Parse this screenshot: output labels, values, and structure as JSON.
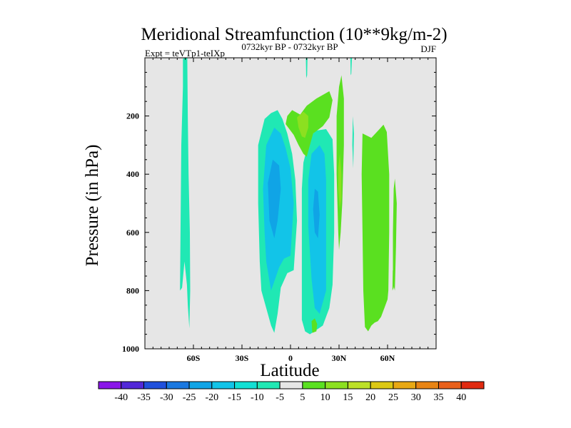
{
  "chart_data": {
    "type": "heatmap",
    "title": "Meridional Streamfunction (10**9kg/m-2)",
    "subtitle_left": "Expt = teVTp1-teIXp",
    "subtitle_center": "0732kyr BP - 0732kyr BP",
    "subtitle_right": "DJF",
    "xlabel": "Latitude",
    "ylabel": "Pressure (in hPa)",
    "xlim": [
      -90,
      90
    ],
    "ylim": [
      0,
      1000
    ],
    "y_reversed": true,
    "xticks": [
      {
        "value": -60,
        "label": "60S"
      },
      {
        "value": -30,
        "label": "30S"
      },
      {
        "value": 0,
        "label": "0"
      },
      {
        "value": 30,
        "label": "30N"
      },
      {
        "value": 60,
        "label": "60N"
      }
    ],
    "yticks": [
      {
        "value": 200,
        "label": "200"
      },
      {
        "value": 400,
        "label": "400"
      },
      {
        "value": 600,
        "label": "600"
      },
      {
        "value": 800,
        "label": "800"
      },
      {
        "value": 1000,
        "label": "1000"
      }
    ],
    "background_color": "#e6e6e6",
    "colorbar": {
      "levels": [
        "-40",
        "-35",
        "-30",
        "-25",
        "-20",
        "-15",
        "-10",
        "-5",
        "5",
        "10",
        "15",
        "20",
        "25",
        "30",
        "35",
        "40"
      ],
      "colors": [
        "#8a16e8",
        "#5228d8",
        "#2050dc",
        "#1a78e0",
        "#10a4e6",
        "#12c4e8",
        "#12e0d4",
        "#20e8b4",
        "#e6e6e6",
        "#5ae020",
        "#8ce020",
        "#bce028",
        "#dcc814",
        "#e8a814",
        "#e88414",
        "#e8601a",
        "#e02a10"
      ]
    },
    "regions": [
      {
        "label": "SH high-latitude negative cell",
        "value_range": [
          -10,
          -5
        ],
        "points": [
          [
            -64.5,
            0
          ],
          [
            -66.5,
            3
          ],
          [
            -66.5,
            100
          ],
          [
            -67.5,
            300
          ],
          [
            -68,
            600
          ],
          [
            -68.3,
            800
          ],
          [
            -67,
            790
          ],
          [
            -65.5,
            700
          ],
          [
            -64,
            780
          ],
          [
            -63.5,
            850
          ],
          [
            -62.5,
            930
          ],
          [
            -62,
            800
          ],
          [
            -62.2,
            600
          ],
          [
            -63,
            400
          ],
          [
            -63.5,
            200
          ],
          [
            -63.8,
            0
          ]
        ]
      },
      {
        "label": "SH negative cell outer",
        "value_range": [
          -10,
          -5
        ],
        "points": [
          [
            -8,
            180
          ],
          [
            -12,
            190
          ],
          [
            -16,
            210
          ],
          [
            -20,
            300
          ],
          [
            -20,
            500
          ],
          [
            -19,
            700
          ],
          [
            -18,
            800
          ],
          [
            -15,
            860
          ],
          [
            -12,
            920
          ],
          [
            -10,
            945
          ],
          [
            -8,
            880
          ],
          [
            -6,
            790
          ],
          [
            -2,
            740
          ],
          [
            2,
            730
          ],
          [
            4,
            560
          ],
          [
            3,
            420
          ],
          [
            1,
            330
          ],
          [
            -2,
            260
          ],
          [
            -5,
            210
          ]
        ]
      },
      {
        "label": "SH negative cell inner",
        "value_range": [
          -20,
          -15
        ],
        "points": [
          [
            -10,
            240
          ],
          [
            -15,
            300
          ],
          [
            -17,
            450
          ],
          [
            -16,
            600
          ],
          [
            -15,
            700
          ],
          [
            -12,
            800
          ],
          [
            -7,
            720
          ],
          [
            -4,
            690
          ],
          [
            0,
            680
          ],
          [
            2,
            500
          ],
          [
            0,
            380
          ],
          [
            -3,
            310
          ],
          [
            -6,
            260
          ]
        ]
      },
      {
        "label": "SH negative cell core",
        "value_range": [
          -25,
          -20
        ],
        "points": [
          [
            -11,
            350
          ],
          [
            -14,
            430
          ],
          [
            -13,
            560
          ],
          [
            -10,
            620
          ],
          [
            -8,
            560
          ],
          [
            -6,
            450
          ],
          [
            -7,
            370
          ]
        ]
      },
      {
        "label": "NH tropical negative cell outer",
        "value_range": [
          -10,
          -5
        ],
        "points": [
          [
            16,
            250
          ],
          [
            12,
            270
          ],
          [
            8,
            360
          ],
          [
            7,
            450
          ],
          [
            7,
            580
          ],
          [
            7,
            820
          ],
          [
            7,
            900
          ],
          [
            9,
            940
          ],
          [
            12,
            950
          ],
          [
            16,
            935
          ],
          [
            20,
            920
          ],
          [
            24,
            860
          ],
          [
            26,
            780
          ],
          [
            27,
            600
          ],
          [
            27,
            400
          ],
          [
            26,
            280
          ],
          [
            22,
            245
          ]
        ]
      },
      {
        "label": "NH tropical negative cell inner",
        "value_range": [
          -20,
          -15
        ],
        "points": [
          [
            18,
            300
          ],
          [
            13,
            330
          ],
          [
            11,
            420
          ],
          [
            11,
            580
          ],
          [
            13,
            760
          ],
          [
            15,
            860
          ],
          [
            18,
            880
          ],
          [
            22,
            800
          ],
          [
            22,
            600
          ],
          [
            22,
            420
          ],
          [
            21,
            330
          ]
        ]
      },
      {
        "label": "NH tropical negative cell core",
        "value_range": [
          -25,
          -20
        ],
        "points": [
          [
            15,
            450
          ],
          [
            14,
            520
          ],
          [
            15,
            600
          ],
          [
            17,
            620
          ],
          [
            18,
            540
          ],
          [
            17,
            460
          ]
        ]
      },
      {
        "label": "upper-tropospheric positive cell",
        "value_range": [
          5,
          10
        ],
        "points": [
          [
            -3,
            228
          ],
          [
            -2,
            200
          ],
          [
            1,
            180
          ],
          [
            6,
            195
          ],
          [
            10,
            165
          ],
          [
            16,
            140
          ],
          [
            24,
            115
          ],
          [
            26,
            145
          ],
          [
            24,
            205
          ],
          [
            20,
            235
          ],
          [
            14,
            260
          ],
          [
            12,
            300
          ],
          [
            10,
            340
          ],
          [
            8,
            330
          ],
          [
            5,
            300
          ],
          [
            2,
            265
          ]
        ]
      },
      {
        "label": "upper-tropospheric positive cell core",
        "value_range": [
          10,
          15
        ],
        "points": [
          [
            5,
            240
          ],
          [
            4,
            205
          ],
          [
            8,
            185
          ],
          [
            11,
            200
          ],
          [
            11,
            240
          ],
          [
            9,
            275
          ],
          [
            7,
            270
          ]
        ]
      },
      {
        "label": "NH subtropical positive strip",
        "value_range": [
          5,
          10
        ],
        "points": [
          [
            31.5,
            60
          ],
          [
            33,
            140
          ],
          [
            33,
            300
          ],
          [
            32,
            500
          ],
          [
            31,
            600
          ],
          [
            30,
            660
          ],
          [
            29.5,
            600
          ],
          [
            28.5,
            400
          ],
          [
            28.5,
            200
          ],
          [
            30,
            100
          ]
        ]
      },
      {
        "label": "NH subtropical positive strip core",
        "value_range": [
          10,
          15
        ],
        "points": [
          [
            30.5,
            330
          ],
          [
            31.5,
            400
          ],
          [
            31.5,
            480
          ],
          [
            30.5,
            520
          ],
          [
            29.5,
            450
          ],
          [
            29.5,
            380
          ]
        ]
      },
      {
        "label": "NH mid-latitude positive cell",
        "value_range": [
          5,
          10
        ],
        "points": [
          [
            44.5,
            260
          ],
          [
            50,
            275
          ],
          [
            55,
            245
          ],
          [
            57.5,
            230
          ],
          [
            59.5,
            255
          ],
          [
            61,
            400
          ],
          [
            61,
            600
          ],
          [
            60.5,
            800
          ],
          [
            60,
            830
          ],
          [
            58,
            860
          ],
          [
            56,
            890
          ],
          [
            54,
            905
          ],
          [
            52,
            910
          ],
          [
            50,
            920
          ],
          [
            48,
            940
          ],
          [
            46,
            925
          ],
          [
            45,
            800
          ],
          [
            44.5,
            600
          ],
          [
            44,
            400
          ]
        ]
      },
      {
        "label": "NH high-latitude positive strip",
        "value_range": [
          5,
          10
        ],
        "points": [
          [
            64.5,
            415
          ],
          [
            65.7,
            500
          ],
          [
            65.2,
            650
          ],
          [
            64.5,
            800
          ],
          [
            63.3,
            775
          ],
          [
            63.3,
            600
          ],
          [
            63.8,
            450
          ]
        ]
      },
      {
        "label": "NH high-latitude positive strip small",
        "value_range": [
          5,
          10
        ],
        "points": [
          [
            63.2,
            730
          ],
          [
            64,
            740
          ],
          [
            63.8,
            790
          ],
          [
            63,
            800
          ]
        ]
      },
      {
        "label": "equatorial negative sliver top",
        "value_range": [
          -10,
          -5
        ],
        "points": [
          [
            9.5,
            0
          ],
          [
            10.5,
            0
          ],
          [
            10.3,
            60
          ],
          [
            9.7,
            70
          ]
        ]
      },
      {
        "label": "NH 37N negative sliver top",
        "value_range": [
          -10,
          -5
        ],
        "points": [
          [
            37,
            0
          ],
          [
            38,
            0
          ],
          [
            37.6,
            55
          ],
          [
            37.2,
            60
          ]
        ]
      },
      {
        "label": "NH 38N negative sliver mid",
        "value_range": [
          -10,
          -5
        ],
        "points": [
          [
            38.5,
            200
          ],
          [
            39.2,
            260
          ],
          [
            38.8,
            380
          ],
          [
            38.2,
            300
          ]
        ]
      },
      {
        "label": "tropical positive blob lower",
        "value_range": [
          5,
          10
        ],
        "points": [
          [
            13,
            905
          ],
          [
            15,
            895
          ],
          [
            16.5,
            915
          ],
          [
            16,
            940
          ],
          [
            13.5,
            945
          ]
        ]
      }
    ]
  }
}
